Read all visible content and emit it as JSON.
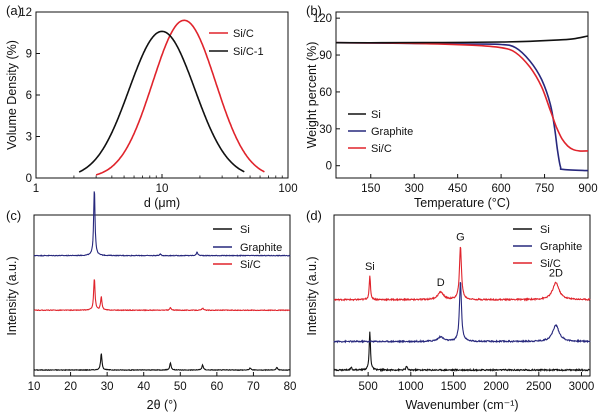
{
  "colors": {
    "black": "#111111",
    "red": "#e0242c",
    "blue": "#27287d"
  },
  "chart_data": [
    {
      "panel": "(a)",
      "type": "line",
      "xscale": "log",
      "xlabel": "d (μm)",
      "ylabel": "Volume Density (%)",
      "xlim": [
        1,
        100
      ],
      "ylim": [
        0,
        12
      ],
      "xticks": [
        1,
        10,
        100
      ],
      "xtick_labels": [
        "1",
        "10",
        "100"
      ],
      "yticks": [
        0,
        3,
        6,
        9,
        12
      ],
      "ytick_labels": [
        "0",
        "3",
        "6",
        "9",
        "12"
      ],
      "legend_position": "top-right",
      "series": [
        {
          "name": "Si/C",
          "color_key": "red",
          "peak_x": 15,
          "peak_y": 11.4,
          "width_decades": 0.25,
          "x_min": 3,
          "x_max": 65
        },
        {
          "name": "Si/C-1",
          "color_key": "black",
          "peak_x": 10,
          "peak_y": 10.6,
          "width_decades": 0.26,
          "x_min": 2.2,
          "x_max": 45
        }
      ]
    },
    {
      "panel": "(b)",
      "type": "line",
      "xlabel": "Temperature (°C)",
      "ylabel": "Weight percent (%)",
      "xlim": [
        30,
        900
      ],
      "ylim": [
        -10,
        125
      ],
      "xticks": [
        150,
        300,
        450,
        600,
        750,
        900
      ],
      "xtick_labels": [
        "150",
        "300",
        "450",
        "600",
        "750",
        "900"
      ],
      "yticks": [
        0,
        30,
        60,
        90,
        120
      ],
      "ytick_labels": [
        "0",
        "30",
        "60",
        "90",
        "120"
      ],
      "legend_position": "bottom-left",
      "series": [
        {
          "name": "Si",
          "color_key": "black",
          "points": [
            [
              30,
              100
            ],
            [
              200,
              100
            ],
            [
              400,
              100.2
            ],
            [
              600,
              100.6
            ],
            [
              700,
              101.2
            ],
            [
              800,
              102.3
            ],
            [
              850,
              103.2
            ],
            [
              900,
              105.5
            ]
          ]
        },
        {
          "name": "Graphite",
          "color_key": "blue",
          "points": [
            [
              30,
              100
            ],
            [
              300,
              99.5
            ],
            [
              500,
              99
            ],
            [
              600,
              98.6
            ],
            [
              650,
              96
            ],
            [
              700,
              85
            ],
            [
              740,
              70
            ],
            [
              770,
              50
            ],
            [
              785,
              30
            ],
            [
              795,
              12
            ],
            [
              805,
              -1
            ],
            [
              815,
              -3
            ],
            [
              900,
              -4
            ]
          ]
        },
        {
          "name": "Si/C",
          "color_key": "red",
          "points": [
            [
              30,
              100
            ],
            [
              300,
              99.5
            ],
            [
              500,
              98
            ],
            [
              600,
              96
            ],
            [
              650,
              92
            ],
            [
              700,
              80
            ],
            [
              740,
              64
            ],
            [
              770,
              45
            ],
            [
              790,
              32
            ],
            [
              810,
              22
            ],
            [
              830,
              16
            ],
            [
              850,
              13
            ],
            [
              870,
              12
            ],
            [
              900,
              12
            ]
          ]
        }
      ]
    },
    {
      "panel": "(c)",
      "type": "line",
      "xlabel": "2θ (°)",
      "ylabel": "Intensity (a.u.)",
      "xlim": [
        10,
        80
      ],
      "xticks": [
        10,
        20,
        30,
        40,
        50,
        60,
        70,
        80
      ],
      "xtick_labels": [
        "10",
        "20",
        "30",
        "40",
        "50",
        "60",
        "70",
        "80"
      ],
      "legend_position": "top-right",
      "series": [
        {
          "name": "Si",
          "color_key": "black",
          "offset": 0,
          "peaks": [
            [
              28.4,
              0.32
            ],
            [
              47.3,
              0.14
            ],
            [
              56.1,
              0.1
            ],
            [
              69.1,
              0.04
            ],
            [
              76.4,
              0.05
            ]
          ]
        },
        {
          "name": "Graphite",
          "color_key": "blue",
          "offset": 2.2,
          "peaks": [
            [
              26.5,
              1.3
            ],
            [
              44.5,
              0.03
            ],
            [
              54.6,
              0.07
            ]
          ]
        },
        {
          "name": "Si/C",
          "color_key": "red",
          "offset": 1.15,
          "peaks": [
            [
              26.5,
              0.62
            ],
            [
              28.4,
              0.26
            ],
            [
              47.3,
              0.05
            ],
            [
              56.1,
              0.04
            ]
          ]
        }
      ]
    },
    {
      "panel": "(d)",
      "type": "line",
      "xlabel": "Wavenumber (cm⁻¹)",
      "ylabel": "Intensity (a.u.)",
      "xlim": [
        100,
        3100
      ],
      "xticks": [
        500,
        1000,
        1500,
        2000,
        2500,
        3000
      ],
      "xtick_labels": [
        "500",
        "1000",
        "1500",
        "2000",
        "2500",
        "3000"
      ],
      "legend_position": "top-right",
      "annotations": [
        {
          "text": "Si",
          "x": 520
        },
        {
          "text": "D",
          "x": 1350
        },
        {
          "text": "G",
          "x": 1582
        },
        {
          "text": "2D",
          "x": 2700
        }
      ],
      "series": [
        {
          "name": "Si",
          "color_key": "black",
          "offset": 0,
          "peaks": [
            [
              300,
              0.08
            ],
            [
              520,
              1.0
            ],
            [
              950,
              0.1
            ]
          ]
        },
        {
          "name": "Graphite",
          "color_key": "blue",
          "offset": 0.75,
          "peaks": [
            [
              1350,
              0.12
            ],
            [
              1582,
              1.6
            ],
            [
              2700,
              0.43
            ]
          ]
        },
        {
          "name": "Si/C",
          "color_key": "red",
          "offset": 1.85,
          "peaks": [
            [
              520,
              0.62
            ],
            [
              1350,
              0.2
            ],
            [
              1582,
              1.4
            ],
            [
              2700,
              0.45
            ]
          ]
        }
      ]
    }
  ]
}
